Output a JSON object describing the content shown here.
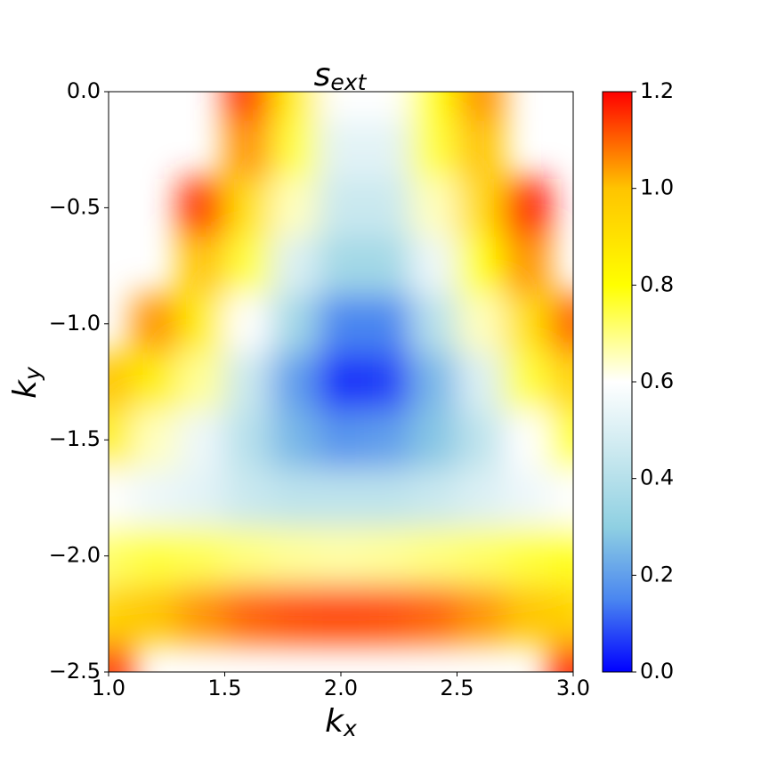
{
  "chart_data": {
    "type": "heatmap",
    "title": "s",
    "title_subscript": "ext",
    "x_label": "k",
    "x_label_subscript": "x",
    "y_label": "k",
    "y_label_subscript": "y",
    "x": [
      1.0,
      1.2,
      1.4,
      1.6,
      1.8,
      2.0,
      2.2,
      2.4,
      2.6,
      2.8,
      3.0
    ],
    "y": [
      0,
      -0.25,
      -0.5,
      -0.75,
      -1.0,
      -1.25,
      -1.5,
      -1.75,
      -2.0,
      -2.25,
      -2.5
    ],
    "z": [
      [
        null,
        null,
        null,
        1.15,
        0.85,
        0.6,
        0.6,
        0.8,
        1.05,
        null,
        null
      ],
      [
        null,
        null,
        null,
        1.05,
        0.75,
        0.52,
        0.52,
        0.75,
        1.0,
        null,
        null
      ],
      [
        null,
        null,
        1.15,
        0.9,
        0.65,
        0.45,
        0.45,
        0.65,
        0.92,
        1.18,
        null
      ],
      [
        null,
        null,
        1.0,
        0.75,
        0.5,
        0.35,
        0.35,
        0.55,
        0.8,
        1.05,
        null
      ],
      [
        null,
        1.05,
        0.85,
        0.6,
        0.35,
        0.15,
        0.15,
        0.4,
        0.65,
        0.9,
        1.1
      ],
      [
        1.0,
        0.85,
        0.68,
        0.45,
        0.2,
        0.05,
        0.07,
        0.25,
        0.5,
        0.75,
        0.95
      ],
      [
        0.85,
        0.65,
        0.55,
        0.4,
        0.25,
        0.18,
        0.2,
        0.28,
        0.42,
        0.6,
        0.8
      ],
      [
        0.6,
        0.55,
        0.52,
        0.45,
        0.42,
        0.42,
        0.42,
        0.45,
        0.5,
        0.55,
        0.6
      ],
      [
        0.72,
        0.75,
        0.73,
        0.7,
        0.68,
        0.67,
        0.68,
        0.7,
        0.72,
        0.75,
        0.78
      ],
      [
        0.95,
        1.0,
        1.05,
        1.1,
        1.12,
        1.13,
        1.12,
        1.1,
        1.05,
        1.0,
        0.95
      ],
      [
        1.15,
        null,
        null,
        null,
        null,
        null,
        null,
        null,
        null,
        null,
        1.18
      ]
    ],
    "xlim": [
      1.0,
      3.0
    ],
    "ylim": [
      -2.5,
      0.0
    ],
    "xticks": [
      {
        "value": 1.0,
        "label": "1.0"
      },
      1.5,
      {
        "value": 2.0,
        "label": "2.0"
      },
      2.5,
      {
        "value": 3.0,
        "label": "3.0"
      }
    ],
    "yticks": [
      {
        "value": -2.5,
        "label": "−2.5"
      },
      {
        "value": -2.0,
        "label": "−2.0"
      },
      {
        "value": -1.5,
        "label": "−1.5"
      },
      {
        "value": -1.0,
        "label": "−1.0"
      },
      {
        "value": -0.5,
        "label": "−0.5"
      },
      {
        "value": 0.0,
        "label": "0.0"
      }
    ],
    "clim": [
      0.0,
      1.2
    ],
    "cticks": [
      {
        "value": 0.0,
        "label": "0.0"
      },
      0.2,
      0.4,
      0.6,
      0.8,
      {
        "value": 1.0,
        "label": "1.0"
      },
      1.2
    ],
    "colormap": [
      {
        "value": 0.0,
        "color": "#0000ff"
      },
      {
        "value": 0.15,
        "color": "#4a86f0"
      },
      {
        "value": 0.3,
        "color": "#8fd0e2"
      },
      {
        "value": 0.45,
        "color": "#c9e8ef"
      },
      {
        "value": 0.6,
        "color": "#ffffff"
      },
      {
        "value": 0.8,
        "color": "#ffff00"
      },
      {
        "value": 1.0,
        "color": "#ffc400"
      },
      {
        "value": 1.2,
        "color": "#ff0000"
      }
    ]
  }
}
